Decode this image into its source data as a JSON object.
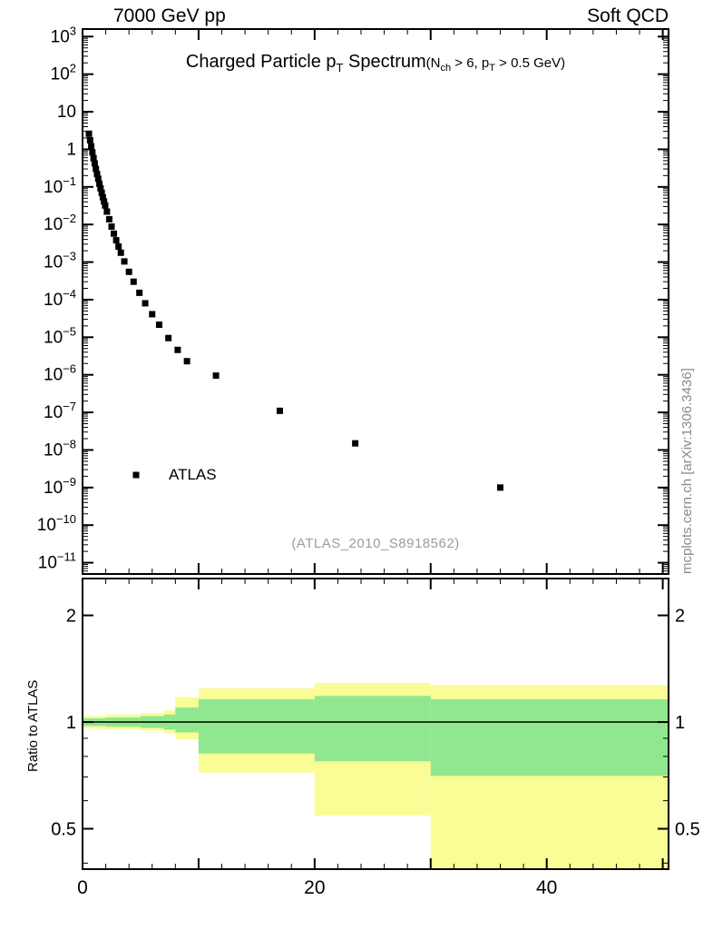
{
  "header": {
    "left": "7000 GeV pp",
    "right": "Soft QCD"
  },
  "sidenote": "mcplots.cern.ch [arXiv:1306.3436]",
  "spectrum": {
    "title": {
      "pre": "Charged Particle p",
      "sub": "T",
      "post": " Spectrum"
    },
    "cuts": {
      "pre": "(N",
      "sub1": "ch",
      "mid": " > 6, p",
      "sub2": "T",
      "post": " > 0.5 GeV)"
    },
    "legend": {
      "label": "ATLAS"
    },
    "watermark": "(ATLAS_2010_S8918562)"
  },
  "ratio": {
    "ylabel": "Ratio to ATLAS"
  },
  "chart_data": [
    {
      "type": "scatter",
      "name": "charged-particle-pt-spectrum",
      "title": "Charged Particle pT Spectrum (Nch > 6, pT > 0.5 GeV)",
      "y_scale": "log",
      "xlim": [
        0,
        50.5
      ],
      "ylim": [
        1e-11,
        1000
      ],
      "yticks_exponents": [
        3,
        2,
        1,
        0,
        -1,
        -2,
        -3,
        -4,
        -5,
        -6,
        -7,
        -8,
        -9,
        -10,
        -11
      ],
      "xticks_major": [
        0,
        10,
        20,
        30,
        40,
        50
      ],
      "xticks_labeled": [
        0,
        20,
        40
      ],
      "legend_position": "left-lower-inside",
      "grid": false,
      "series": [
        {
          "name": "ATLAS",
          "marker": "filled-square",
          "color": "#000000",
          "x": [
            0.55,
            0.65,
            0.75,
            0.85,
            0.95,
            1.05,
            1.15,
            1.25,
            1.35,
            1.45,
            1.55,
            1.65,
            1.75,
            1.85,
            1.95,
            2.1,
            2.3,
            2.5,
            2.7,
            2.9,
            3.1,
            3.3,
            3.6,
            4.0,
            4.4,
            4.9,
            5.4,
            6.0,
            6.6,
            7.4,
            8.2,
            9.0,
            11.5,
            17.0,
            23.5,
            36.0
          ],
          "y": [
            2.6,
            1.75,
            1.2,
            0.83,
            0.58,
            0.42,
            0.3,
            0.22,
            0.165,
            0.122,
            0.092,
            0.07,
            0.053,
            0.041,
            0.032,
            0.022,
            0.0138,
            0.0088,
            0.0057,
            0.0038,
            0.00258,
            0.00177,
            0.00104,
            0.00055,
            0.0003,
            0.000152,
            8e-05,
            4.1e-05,
            2.15e-05,
            9.5e-06,
            4.6e-06,
            2.3e-06,
            9.5e-07,
            1.1e-07,
            1.5e-08,
            1e-09
          ]
        }
      ]
    },
    {
      "type": "band",
      "name": "ratio-to-atlas",
      "ylabel": "Ratio to ATLAS",
      "y_scale": "log",
      "xlim": [
        0,
        50.5
      ],
      "ylim": [
        0.385,
        2.54
      ],
      "yticks": [
        0.5,
        1,
        2
      ],
      "yticks_minor": [
        0.4,
        0.6,
        0.7,
        0.8,
        0.9
      ],
      "xticks_major": [
        0,
        10,
        20,
        30,
        40,
        50
      ],
      "xticks_labeled": [
        0,
        20,
        40
      ],
      "reference_line": 1,
      "bands": [
        {
          "name": "outer-uncertainty",
          "color": "#fafc96",
          "segments": [
            [
              0,
              2,
              0.96,
              1.04
            ],
            [
              2,
              5,
              0.955,
              1.05
            ],
            [
              5,
              7,
              0.945,
              1.06
            ],
            [
              7,
              8,
              0.93,
              1.08
            ],
            [
              8,
              10,
              0.895,
              1.175
            ],
            [
              10,
              20,
              0.72,
              1.245
            ],
            [
              20,
              30,
              0.545,
              1.29
            ],
            [
              30,
              50.5,
              0.37,
              1.27
            ]
          ]
        },
        {
          "name": "inner-uncertainty",
          "color": "#8fe88f",
          "segments": [
            [
              0,
              2,
              0.975,
              1.025
            ],
            [
              2,
              5,
              0.97,
              1.03
            ],
            [
              5,
              7,
              0.963,
              1.04
            ],
            [
              7,
              8,
              0.952,
              1.05
            ],
            [
              8,
              10,
              0.935,
              1.1
            ],
            [
              10,
              20,
              0.815,
              1.16
            ],
            [
              20,
              30,
              0.775,
              1.185
            ],
            [
              30,
              50.5,
              0.705,
              1.16
            ]
          ]
        }
      ]
    }
  ]
}
